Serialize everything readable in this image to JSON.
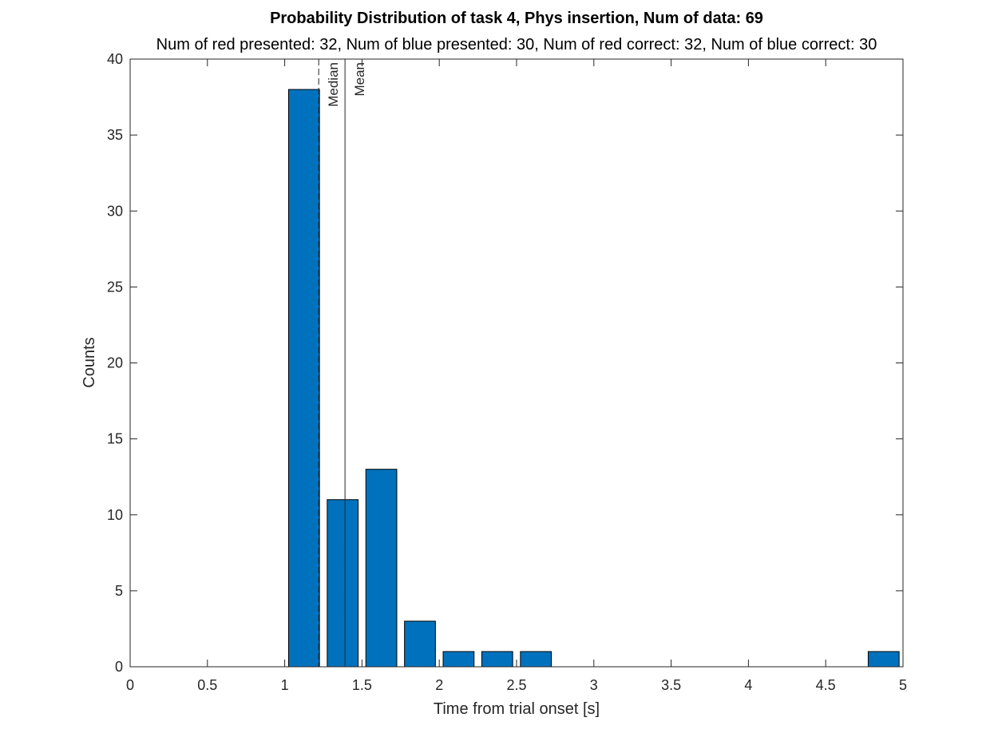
{
  "chart_data": {
    "type": "bar",
    "title": "Probability Distribution of task 4, Phys insertion, Num of data: 69",
    "subtitle": "Num of red presented: 32, Num of blue presented: 30, Num of red correct: 32, Num of blue correct: 30",
    "xlabel": "Time from trial onset [s]",
    "ylabel": "Counts",
    "xlim": [
      0,
      5
    ],
    "ylim": [
      0,
      40
    ],
    "xticks": [
      0,
      0.5,
      1,
      1.5,
      2,
      2.5,
      3,
      3.5,
      4,
      4.5,
      5
    ],
    "yticks": [
      0,
      5,
      10,
      15,
      20,
      25,
      30,
      35,
      40
    ],
    "bar_color": "#0072BD",
    "bar_edge_color": "#000000",
    "bars": [
      {
        "x": 1.125,
        "value": 38
      },
      {
        "x": 1.375,
        "value": 11
      },
      {
        "x": 1.625,
        "value": 13
      },
      {
        "x": 1.875,
        "value": 3
      },
      {
        "x": 2.125,
        "value": 1
      },
      {
        "x": 2.375,
        "value": 1
      },
      {
        "x": 2.625,
        "value": 1
      },
      {
        "x": 4.875,
        "value": 1
      }
    ],
    "bar_width": 0.2,
    "reference_lines": [
      {
        "label": "Median",
        "x": 1.22,
        "style": "dashed"
      },
      {
        "label": "Mean",
        "x": 1.39,
        "style": "solid"
      }
    ],
    "grid": false
  }
}
